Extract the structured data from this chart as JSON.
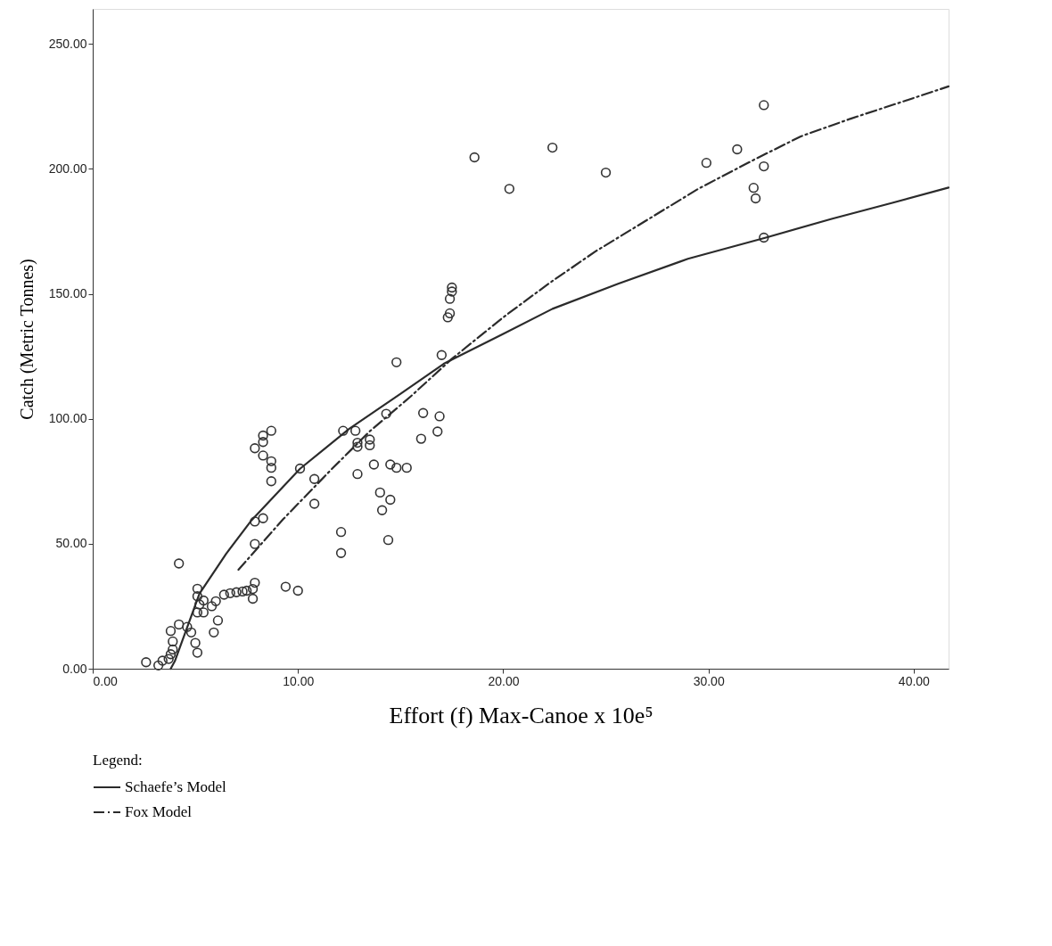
{
  "chart_data": {
    "type": "scatter",
    "xlabel": "Effort (f) Max-Canoe x 10e⁵",
    "ylabel": "Catch (Metric Tonnes)",
    "legend_title": "Legend:",
    "xlim": [
      0,
      41.7
    ],
    "ylim": [
      0,
      264
    ],
    "xticks": [
      {
        "value": 0,
        "label": "0.00"
      },
      {
        "value": 10,
        "label": "10.00"
      },
      {
        "value": 20,
        "label": "20.00"
      },
      {
        "value": 30,
        "label": "30.00"
      },
      {
        "value": 40,
        "label": "40.00"
      }
    ],
    "yticks": [
      {
        "value": 0,
        "label": "0.00"
      },
      {
        "value": 50,
        "label": "50.00"
      },
      {
        "value": 100,
        "label": "100.00"
      },
      {
        "value": 150,
        "label": "150.00"
      },
      {
        "value": 200,
        "label": "200.00"
      },
      {
        "value": 250,
        "label": "250.00"
      }
    ],
    "grid": false,
    "legend": "bottom left",
    "series": [
      {
        "color": "#333333",
        "marker": "circle",
        "x": [
          2.6,
          3.2,
          3.4,
          3.7,
          3.8,
          3.9,
          3.9,
          3.8,
          4.2,
          4.2,
          4.6,
          4.8,
          5.0,
          5.1,
          5.1,
          5.1,
          5.1,
          5.2,
          5.4,
          5.4,
          5.8,
          6.0,
          5.9,
          6.1,
          6.4,
          6.7,
          7.0,
          7.3,
          7.5,
          7.8,
          7.9,
          7.8,
          7.9,
          7.9,
          7.9,
          8.3,
          8.3,
          8.3,
          8.3,
          8.7,
          8.7,
          8.7,
          8.7,
          9.4,
          10.0,
          10.1,
          10.8,
          10.8,
          12.1,
          12.1,
          12.2,
          12.8,
          12.9,
          12.9,
          12.9,
          13.5,
          13.5,
          13.7,
          14.0,
          14.1,
          14.3,
          14.5,
          14.5,
          14.4,
          14.8,
          15.3,
          14.8,
          16.0,
          16.1,
          16.8,
          16.9,
          17.0,
          17.3,
          17.4,
          17.4,
          17.5,
          17.5,
          18.6,
          20.3,
          22.4,
          25.0,
          29.9,
          31.4,
          32.2,
          32.3,
          32.7,
          32.7,
          32.7
        ],
        "values": [
          2.6,
          1.3,
          3.2,
          3.9,
          5.8,
          7.7,
          10.9,
          15.1,
          17.7,
          42.1,
          16.7,
          14.5,
          10.3,
          6.4,
          22.5,
          29,
          32,
          25.7,
          27.3,
          22.5,
          25,
          27,
          14.5,
          19.3,
          29.6,
          30.2,
          30.6,
          30.9,
          31.2,
          31.9,
          34.4,
          28,
          49.9,
          58.9,
          88.2,
          93.3,
          90.7,
          85.3,
          60.2,
          95.2,
          83,
          80.4,
          75,
          32.8,
          31.2,
          80.1,
          75.9,
          66,
          54.7,
          46.3,
          95.2,
          95.2,
          90.4,
          88.8,
          77.9,
          91.7,
          89.4,
          81.7,
          70.5,
          63.4,
          102,
          81.7,
          67.6,
          51.5,
          80.4,
          80.4,
          122.6,
          92,
          102.3,
          94.9,
          101,
          125.5,
          140.6,
          142.2,
          148,
          150.9,
          152.5,
          204.6,
          192,
          208.5,
          198.5,
          202.4,
          207.8,
          192.4,
          188.2,
          225.5,
          201,
          172.5
        ]
      },
      {
        "type": "line",
        "name": "Schaefe’s Model",
        "color": "#2b2b2b",
        "line_style": "solid",
        "x": [
          3.8,
          4.0,
          5.2,
          6.5,
          7.7,
          10.1,
          12.5,
          15,
          17.1,
          20,
          22.4,
          25.6,
          29,
          32.8,
          36,
          39,
          41.7
        ],
        "values": [
          0,
          3,
          30,
          46,
          59,
          80,
          96,
          110,
          122,
          134,
          144,
          154,
          164,
          172.5,
          180,
          186.5,
          192.5
        ]
      },
      {
        "type": "line",
        "name": "Fox Model",
        "color": "#2b2b2b",
        "line_style": "dashed",
        "x": [
          7.1,
          9.3,
          11.6,
          13.5,
          15.5,
          17.5,
          20,
          22.2,
          24.5,
          26.9,
          29.5,
          32.3,
          34.5,
          36.9,
          39.5,
          41.7
        ],
        "values": [
          39.6,
          60,
          79.5,
          95,
          109,
          124,
          140.6,
          154,
          167,
          179,
          192,
          204,
          213,
          220,
          227,
          233
        ]
      }
    ]
  }
}
